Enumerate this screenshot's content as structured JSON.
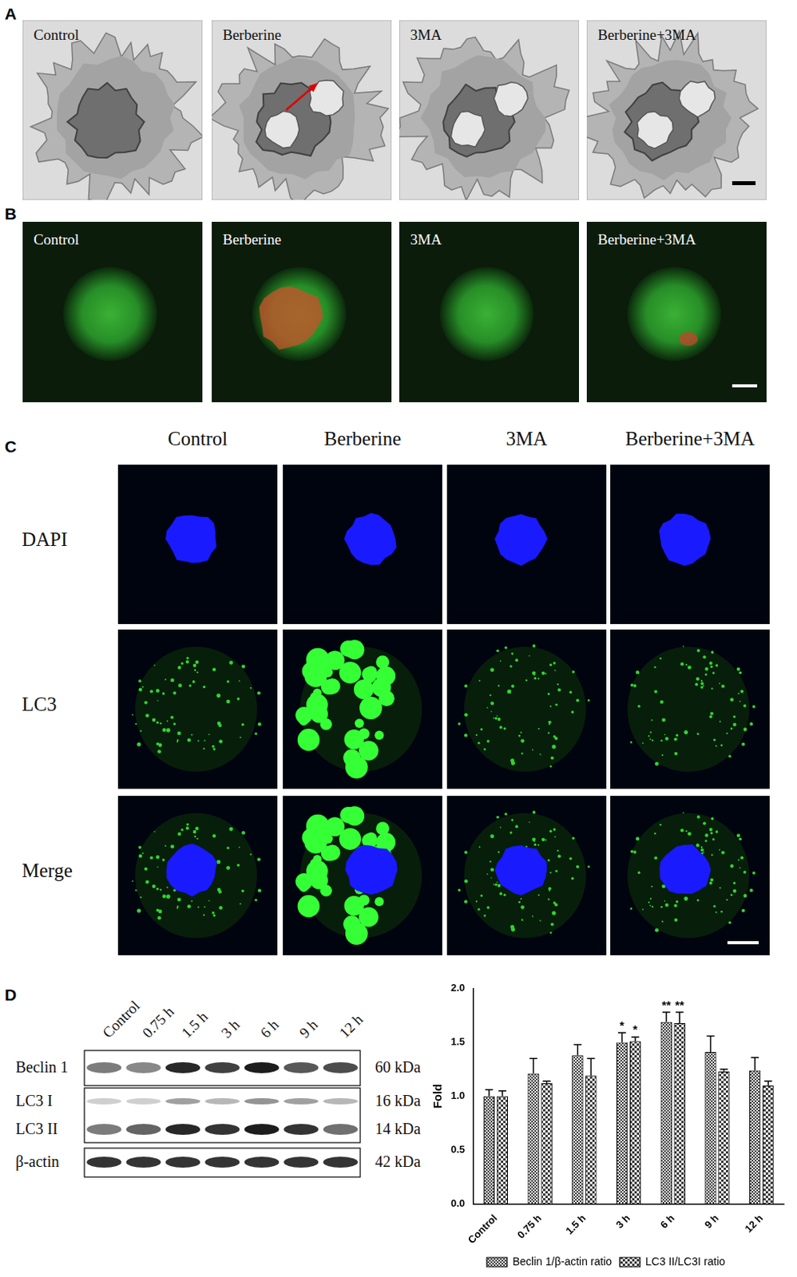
{
  "panels": {
    "A": {
      "letter": "A",
      "labels": [
        "Control",
        "Berberine",
        "3MA",
        "Berberine+3MA"
      ]
    },
    "B": {
      "letter": "B",
      "labels": [
        "Control",
        "Berberine",
        "3MA",
        "Berberine+3MA"
      ]
    },
    "C": {
      "letter": "C",
      "columns": [
        "Control",
        "Berberine",
        "3MA",
        "Berberine+3MA"
      ],
      "rows": [
        "DAPI",
        "LC3",
        "Merge"
      ]
    },
    "D": {
      "letter": "D",
      "blot": {
        "lanes": [
          "Control",
          "0.75 h",
          "1.5 h",
          "3 h",
          "6 h",
          "9 h",
          "12 h"
        ],
        "bands": [
          {
            "name": "Beclin 1",
            "size": "60 kDa"
          },
          {
            "name": "LC3 I",
            "size": "16 kDa"
          },
          {
            "name": "LC3 II",
            "size": "14 kDa"
          },
          {
            "name": "β-actin",
            "size": "42 kDa"
          }
        ]
      }
    }
  },
  "chart_data": {
    "type": "bar",
    "categories": [
      "Control",
      "0.75 h",
      "1.5 h",
      "3 h",
      "6 h",
      "9 h",
      "12 h"
    ],
    "series": [
      {
        "name": "Beclin 1/β-actin ratio",
        "color": "#3a3a3a",
        "values": [
          1.0,
          1.21,
          1.38,
          1.5,
          1.69,
          1.41,
          1.24
        ],
        "errors": [
          0.06,
          0.14,
          0.1,
          0.09,
          0.09,
          0.15,
          0.12
        ],
        "significance": [
          null,
          null,
          null,
          "*",
          "**",
          null,
          null
        ]
      },
      {
        "name": "LC3 II/LC3I ratio",
        "color": "#3a3a3a",
        "values": [
          1.0,
          1.12,
          1.19,
          1.51,
          1.68,
          1.23,
          1.1
        ],
        "errors": [
          0.05,
          0.02,
          0.16,
          0.04,
          0.1,
          0.02,
          0.04
        ],
        "significance": [
          null,
          null,
          null,
          "*",
          "**",
          null,
          null
        ]
      }
    ],
    "ylabel": "Fold",
    "ylim": [
      0,
      2
    ],
    "yticks": [
      {
        "value": 0,
        "label": "0.0"
      },
      {
        "value": 0.5,
        "label": "0.5"
      },
      {
        "value": 1,
        "label": "1.0"
      },
      {
        "value": 1.5,
        "label": "1.5"
      },
      {
        "value": 2,
        "label": "2.0"
      }
    ],
    "legend": "bottom",
    "grid": false
  }
}
